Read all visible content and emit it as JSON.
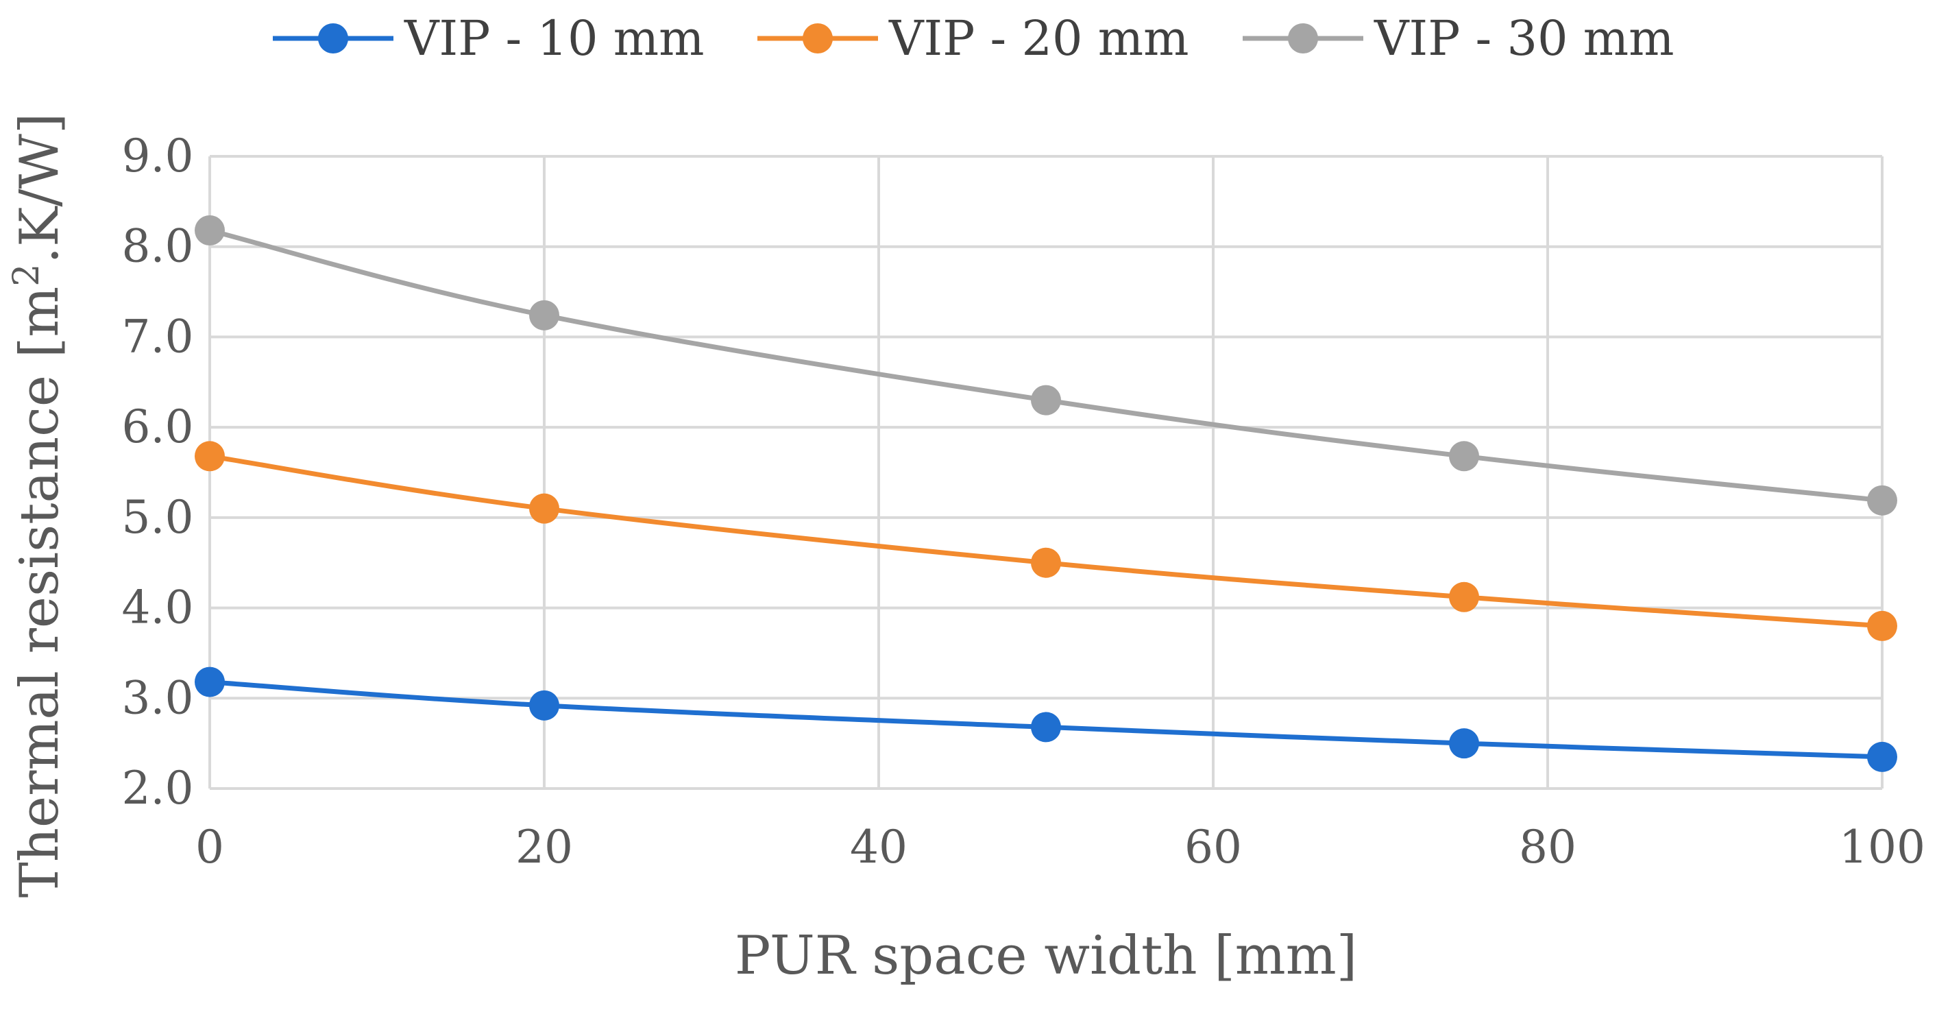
{
  "chart_data": {
    "type": "line",
    "title": "",
    "xlabel": "PUR space width [mm]",
    "ylabel_parts": {
      "main": "Thermal resistance [m",
      "sup": "2",
      "tail": ".K/W]"
    },
    "xlim": [
      0,
      100
    ],
    "ylim": [
      2.0,
      9.0
    ],
    "x_ticks": [
      0,
      20,
      40,
      60,
      80,
      100
    ],
    "x_tick_labels": [
      "0",
      "20",
      "40",
      "60",
      "80",
      "100"
    ],
    "y_ticks": [
      2.0,
      3.0,
      4.0,
      5.0,
      6.0,
      7.0,
      8.0,
      9.0
    ],
    "y_tick_labels": [
      "2.0",
      "3.0",
      "4.0",
      "5.0",
      "6.0",
      "7.0",
      "8.0",
      "9.0"
    ],
    "grid": true,
    "legend_position": "top-center",
    "x": [
      0,
      20,
      50,
      75,
      100
    ],
    "series": [
      {
        "name": "VIP - 10 mm",
        "color": "#1f6fd0",
        "values": [
          3.18,
          2.92,
          2.68,
          2.5,
          2.35
        ]
      },
      {
        "name": "VIP - 20 mm",
        "color": "#f28a2e",
        "values": [
          5.68,
          5.1,
          4.5,
          4.12,
          3.8
        ]
      },
      {
        "name": "VIP - 30 mm",
        "color": "#a5a5a5",
        "values": [
          8.18,
          7.24,
          6.3,
          5.68,
          5.19
        ]
      }
    ],
    "grid_color": "#d9d9d9"
  }
}
